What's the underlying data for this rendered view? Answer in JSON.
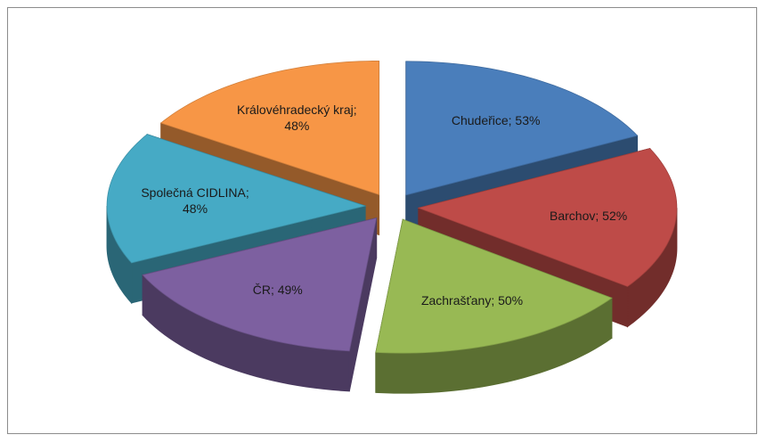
{
  "chart_data": {
    "type": "pie",
    "values": [
      53,
      52,
      50,
      49,
      48,
      48
    ],
    "value_labels": [
      "Chudeřice; 53%",
      "Barchov; 52%",
      "Zachrašťany; 50%",
      "ČR; 49%",
      "Společná CIDLINA; 48%",
      "Královéhradecký kraj; 48%"
    ],
    "colors": [
      "#4a7ebb",
      "#be4b48",
      "#98b954",
      "#7d60a0",
      "#46aac5",
      "#f79646"
    ],
    "exploded": true,
    "three_d": true
  }
}
